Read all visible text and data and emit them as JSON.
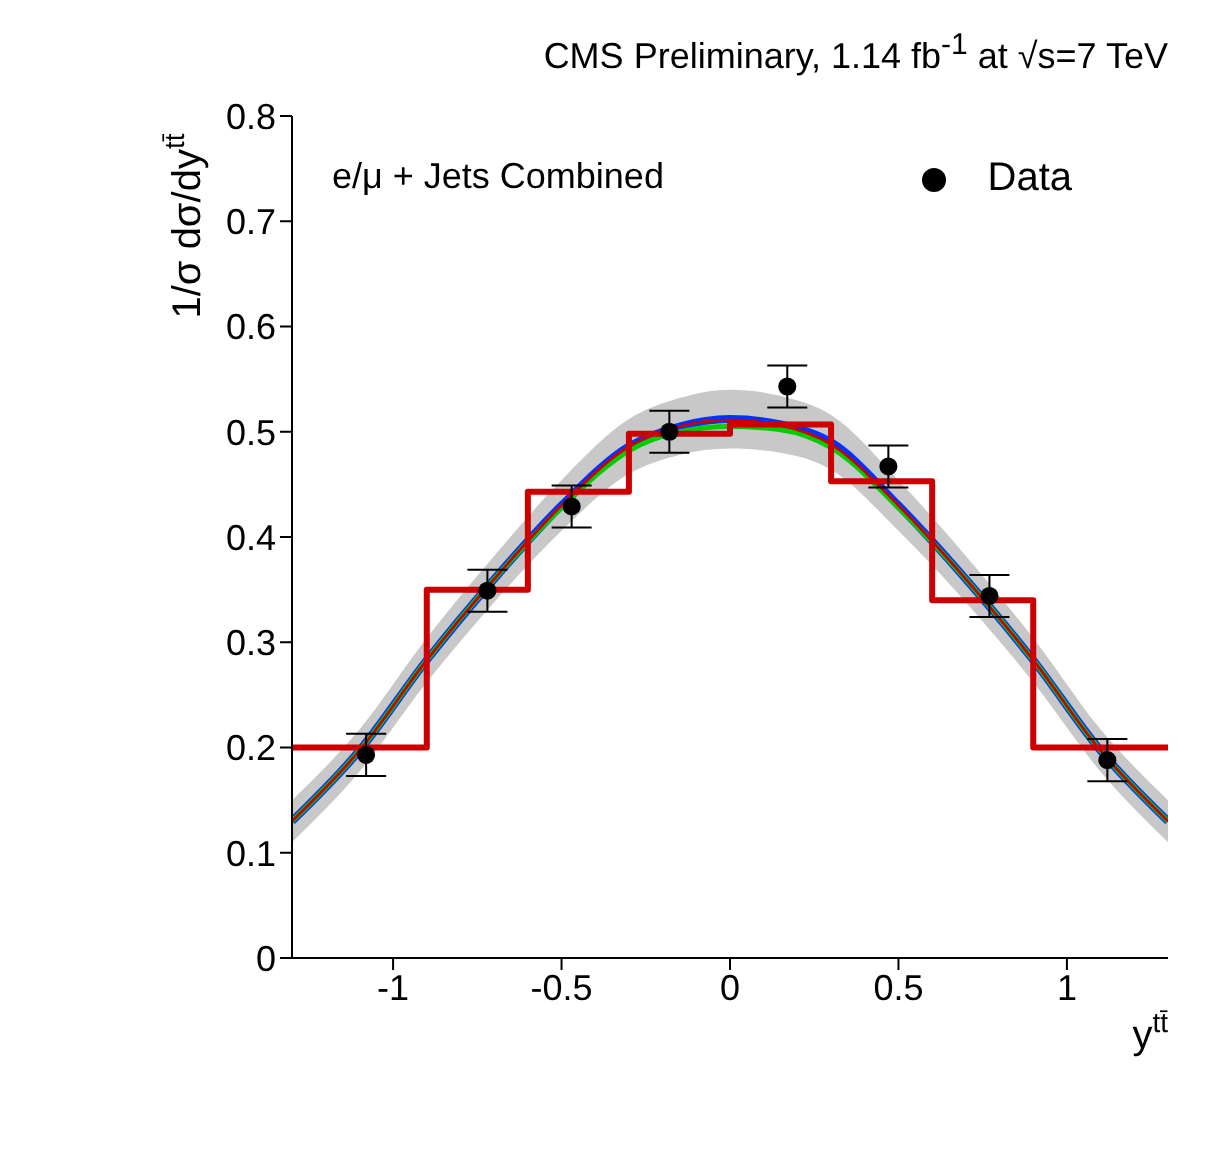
{
  "chart_data": {
    "type": "line",
    "title": "CMS Preliminary, 1.14 fb$^{-1}$ at √s=7 TeV",
    "xlabel": "y$^{tt̄}$",
    "ylabel": "1/σ dσ/dy$^{tt̄}$",
    "annotations": [
      "e/μ + Jets Combined"
    ],
    "xlim": [
      -1.3,
      1.3
    ],
    "xticks": [
      -1,
      -0.5,
      0,
      0.5,
      1
    ],
    "ylim": [
      0,
      0.8
    ],
    "yticks": [
      0,
      0.1,
      0.2,
      0.3,
      0.4,
      0.5,
      0.6,
      0.7,
      0.8
    ],
    "grid": false,
    "legend": "top right",
    "series": [
      {
        "color": "#0033ff",
        "x": [
          -1.3,
          -1.1,
          -0.9,
          -0.7,
          -0.5,
          -0.3,
          -0.15,
          0,
          0.15,
          0.3,
          0.5,
          0.7,
          0.9,
          1.1,
          1.3
        ],
        "values": [
          0.13,
          0.197,
          0.283,
          0.36,
          0.43,
          0.486,
          0.505,
          0.512,
          0.507,
          0.49,
          0.43,
          0.36,
          0.283,
          0.197,
          0.13
        ],
        "lower": [
          0.11,
          0.177,
          0.262,
          0.338,
          0.406,
          0.46,
          0.478,
          0.484,
          0.48,
          0.464,
          0.406,
          0.338,
          0.262,
          0.177,
          0.11
        ],
        "upper": [
          0.15,
          0.217,
          0.304,
          0.382,
          0.454,
          0.512,
          0.532,
          0.54,
          0.534,
          0.516,
          0.454,
          0.382,
          0.304,
          0.217,
          0.15
        ]
      },
      {
        "color": "#00cc00",
        "x": [
          -1.3,
          -1.1,
          -0.9,
          -0.7,
          -0.5,
          -0.3,
          -0.15,
          0,
          0.15,
          0.3,
          0.5,
          0.7,
          0.9,
          1.1,
          1.3
        ],
        "values": [
          0.13,
          0.197,
          0.283,
          0.36,
          0.428,
          0.482,
          0.5,
          0.505,
          0.502,
          0.485,
          0.428,
          0.36,
          0.283,
          0.197,
          0.13
        ]
      },
      {
        "color": "#cc0000",
        "x": [
          -1.3,
          -1.1,
          -0.9,
          -0.7,
          -0.5,
          -0.3,
          -0.15,
          0,
          0.15,
          0.3,
          0.5,
          0.7,
          0.9,
          1.1,
          1.3
        ],
        "values": [
          0.13,
          0.197,
          0.283,
          0.36,
          0.43,
          0.486,
          0.505,
          0.511,
          0.506,
          0.488,
          0.43,
          0.36,
          0.283,
          0.197,
          0.13
        ]
      },
      {
        "type": "step",
        "color": "#cc0000",
        "x": [
          -1.3,
          -0.9,
          -0.6,
          -0.3,
          0,
          0.3,
          0.6,
          0.9,
          1.3
        ],
        "values": [
          0.2,
          0.35,
          0.443,
          0.498,
          0.507,
          0.453,
          0.34,
          0.2,
          0.2
        ]
      },
      {
        "type": "scatter",
        "name": "Data",
        "marker": "circle",
        "color": "#000000",
        "x": [
          -1.08,
          -0.72,
          -0.47,
          -0.18,
          0.17,
          0.47,
          0.77,
          1.12
        ],
        "values": [
          0.193,
          0.349,
          0.429,
          0.5,
          0.543,
          0.467,
          0.344,
          0.188
        ],
        "errors": [
          0.02,
          0.02,
          0.02,
          0.02,
          0.02,
          0.02,
          0.02,
          0.02
        ]
      }
    ]
  }
}
